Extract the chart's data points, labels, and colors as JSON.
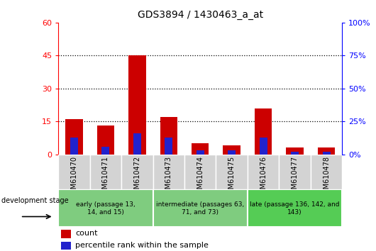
{
  "title": "GDS3894 / 1430463_a_at",
  "samples": [
    "GSM610470",
    "GSM610471",
    "GSM610472",
    "GSM610473",
    "GSM610474",
    "GSM610475",
    "GSM610476",
    "GSM610477",
    "GSM610478"
  ],
  "count_values": [
    16,
    13,
    45,
    17,
    5,
    4,
    21,
    3,
    3
  ],
  "percentile_values": [
    13,
    6,
    16,
    13,
    3,
    3,
    13,
    2,
    2
  ],
  "ylim_left": [
    0,
    60
  ],
  "ylim_right": [
    0,
    100
  ],
  "yticks_left": [
    0,
    15,
    30,
    45,
    60
  ],
  "yticks_right": [
    0,
    25,
    50,
    75,
    100
  ],
  "count_color": "#CC0000",
  "percentile_color": "#2222CC",
  "plot_bg": "#FFFFFF",
  "tick_bg": "#D3D3D3",
  "groups": [
    {
      "label": "early (passage 13,\n14, and 15)",
      "start": 0,
      "end": 3,
      "color": "#7FCC7F"
    },
    {
      "label": "intermediate (passages 63,\n71, and 73)",
      "start": 3,
      "end": 6,
      "color": "#7FCC7F"
    },
    {
      "label": "late (passage 136, 142, and\n143)",
      "start": 6,
      "end": 9,
      "color": "#55CC55"
    }
  ],
  "legend_count_label": "count",
  "legend_percentile_label": "percentile rank within the sample",
  "dev_stage_label": "development stage"
}
